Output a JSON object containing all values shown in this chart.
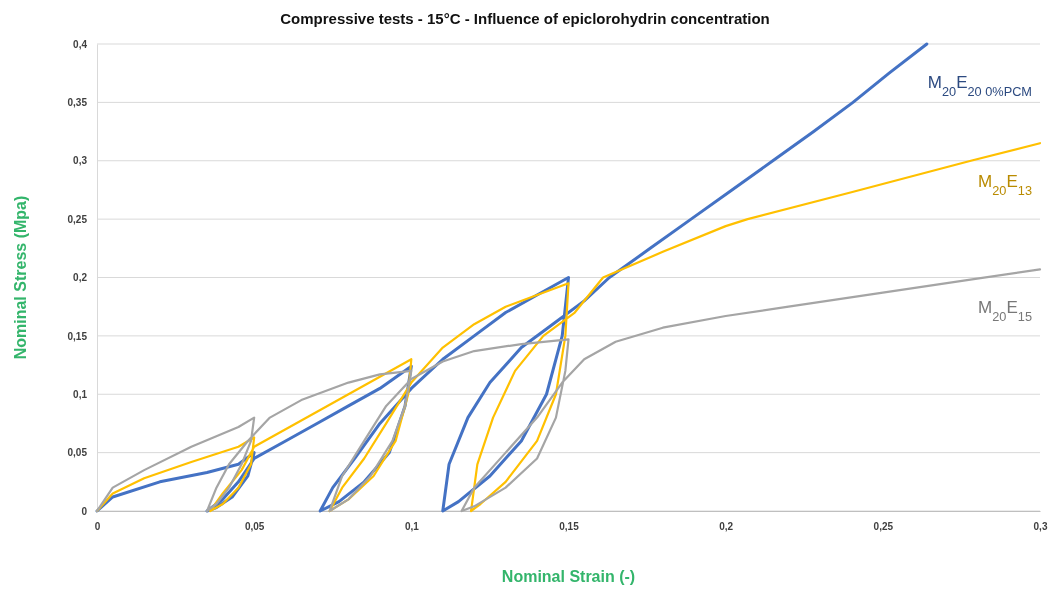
{
  "chart_data": {
    "type": "line",
    "title": "Compressive tests - 15°C - Influence of epiclorohydrin concentration",
    "xlabel": "Nominal Strain (-)",
    "ylabel": "Nominal Stress (Mpa)",
    "xlim": [
      0,
      0.3
    ],
    "ylim": [
      0,
      0.4
    ],
    "xticks": [
      0,
      {
        "value": 0.05,
        "label": "0,05"
      },
      {
        "value": 0.1,
        "label": "0,1"
      },
      {
        "value": 0.15,
        "label": "0,15"
      },
      {
        "value": 0.2,
        "label": "0,2"
      },
      {
        "value": 0.25,
        "label": "0,25"
      },
      {
        "value": 0.3,
        "label": "0,3"
      }
    ],
    "yticks": [
      0,
      {
        "value": 0.05,
        "label": "0,05"
      },
      {
        "value": 0.1,
        "label": "0,1"
      },
      {
        "value": 0.15,
        "label": "0,15"
      },
      {
        "value": 0.2,
        "label": "0,2"
      },
      {
        "value": 0.25,
        "label": "0,25"
      },
      {
        "value": 0.3,
        "label": "0,3"
      },
      {
        "value": 0.35,
        "label": "0,35"
      },
      {
        "value": 0.4,
        "label": "0,4"
      }
    ],
    "grid": "y",
    "legend": false,
    "marker": "none",
    "line_style": "solid",
    "series": [
      {
        "name": "M$_{20}$E$_{20 0%PCM}$",
        "color": "#4472c4",
        "x": [
          0,
          0.005,
          0.02,
          0.035,
          0.045,
          0.05,
          0.048,
          0.043,
          0.038,
          0.035,
          0.04,
          0.045,
          0.05,
          0.06,
          0.07,
          0.08,
          0.09,
          0.1,
          0.098,
          0.093,
          0.085,
          0.077,
          0.071,
          0.075,
          0.082,
          0.09,
          0.1,
          0.11,
          0.12,
          0.13,
          0.14,
          0.15,
          0.148,
          0.143,
          0.135,
          0.125,
          0.115,
          0.11,
          0.112,
          0.118,
          0.125,
          0.135,
          0.145,
          0.155,
          0.163,
          0.176,
          0.189,
          0.202,
          0.215,
          0.228,
          0.2405,
          0.252,
          0.264
        ],
        "values": [
          0,
          0.012,
          0.025,
          0.033,
          0.04,
          0.05,
          0.03,
          0.012,
          0.003,
          0,
          0.01,
          0.025,
          0.045,
          0.06,
          0.075,
          0.09,
          0.105,
          0.124,
          0.09,
          0.05,
          0.025,
          0.008,
          0,
          0.02,
          0.045,
          0.075,
          0.105,
          0.13,
          0.15,
          0.17,
          0.185,
          0.2,
          0.15,
          0.1,
          0.06,
          0.03,
          0.008,
          0,
          0.04,
          0.08,
          0.11,
          0.14,
          0.16,
          0.18,
          0.2,
          0.225,
          0.25,
          0.275,
          0.3,
          0.325,
          0.35,
          0.375,
          0.4
        ]
      },
      {
        "name": "M$_{20}$E$_{13}$",
        "color": "#ffc000",
        "x": [
          0,
          0.005,
          0.015,
          0.03,
          0.045,
          0.05,
          0.049,
          0.045,
          0.04,
          0.036,
          0.04,
          0.046,
          0.05,
          0.06,
          0.07,
          0.08,
          0.09,
          0.1,
          0.099,
          0.095,
          0.088,
          0.08,
          0.074,
          0.078,
          0.085,
          0.092,
          0.1,
          0.11,
          0.12,
          0.13,
          0.14,
          0.15,
          0.149,
          0.146,
          0.14,
          0.13,
          0.122,
          0.119,
          0.121,
          0.126,
          0.133,
          0.142,
          0.152,
          0.161,
          0.18,
          0.2,
          0.207,
          0.24,
          0.278,
          0.3
        ],
        "values": [
          0,
          0.015,
          0.028,
          0.042,
          0.055,
          0.063,
          0.04,
          0.02,
          0.006,
          0,
          0.015,
          0.035,
          0.055,
          0.07,
          0.085,
          0.1,
          0.115,
          0.13,
          0.1,
          0.06,
          0.03,
          0.01,
          0,
          0.02,
          0.045,
          0.075,
          0.11,
          0.14,
          0.16,
          0.175,
          0.185,
          0.195,
          0.15,
          0.1,
          0.06,
          0.025,
          0.006,
          0,
          0.04,
          0.08,
          0.12,
          0.15,
          0.17,
          0.2,
          0.222,
          0.244,
          0.25,
          0.273,
          0.3,
          0.315
        ]
      },
      {
        "name": "M$_{20}$E$_{15}$",
        "color": "#a5a5a5",
        "x": [
          0,
          0.005,
          0.015,
          0.03,
          0.045,
          0.05,
          0.049,
          0.046,
          0.042,
          0.038,
          0.035,
          0.038,
          0.042,
          0.048,
          0.055,
          0.065,
          0.08,
          0.09,
          0.1,
          0.098,
          0.094,
          0.087,
          0.08,
          0.074,
          0.078,
          0.085,
          0.092,
          0.1,
          0.11,
          0.12,
          0.135,
          0.15,
          0.149,
          0.146,
          0.14,
          0.13,
          0.12,
          0.116,
          0.12,
          0.13,
          0.14,
          0.148,
          0.155,
          0.165,
          0.18,
          0.2,
          0.22,
          0.25,
          0.28,
          0.3
        ],
        "values": [
          0,
          0.02,
          0.035,
          0.055,
          0.072,
          0.08,
          0.06,
          0.04,
          0.02,
          0.006,
          0,
          0.02,
          0.04,
          0.06,
          0.08,
          0.095,
          0.11,
          0.117,
          0.12,
          0.09,
          0.06,
          0.03,
          0.01,
          0,
          0.03,
          0.06,
          0.09,
          0.113,
          0.128,
          0.137,
          0.143,
          0.147,
          0.12,
          0.08,
          0.045,
          0.02,
          0.004,
          0,
          0.02,
          0.05,
          0.08,
          0.11,
          0.13,
          0.145,
          0.157,
          0.167,
          0.175,
          0.187,
          0.199,
          0.207
        ]
      }
    ]
  }
}
